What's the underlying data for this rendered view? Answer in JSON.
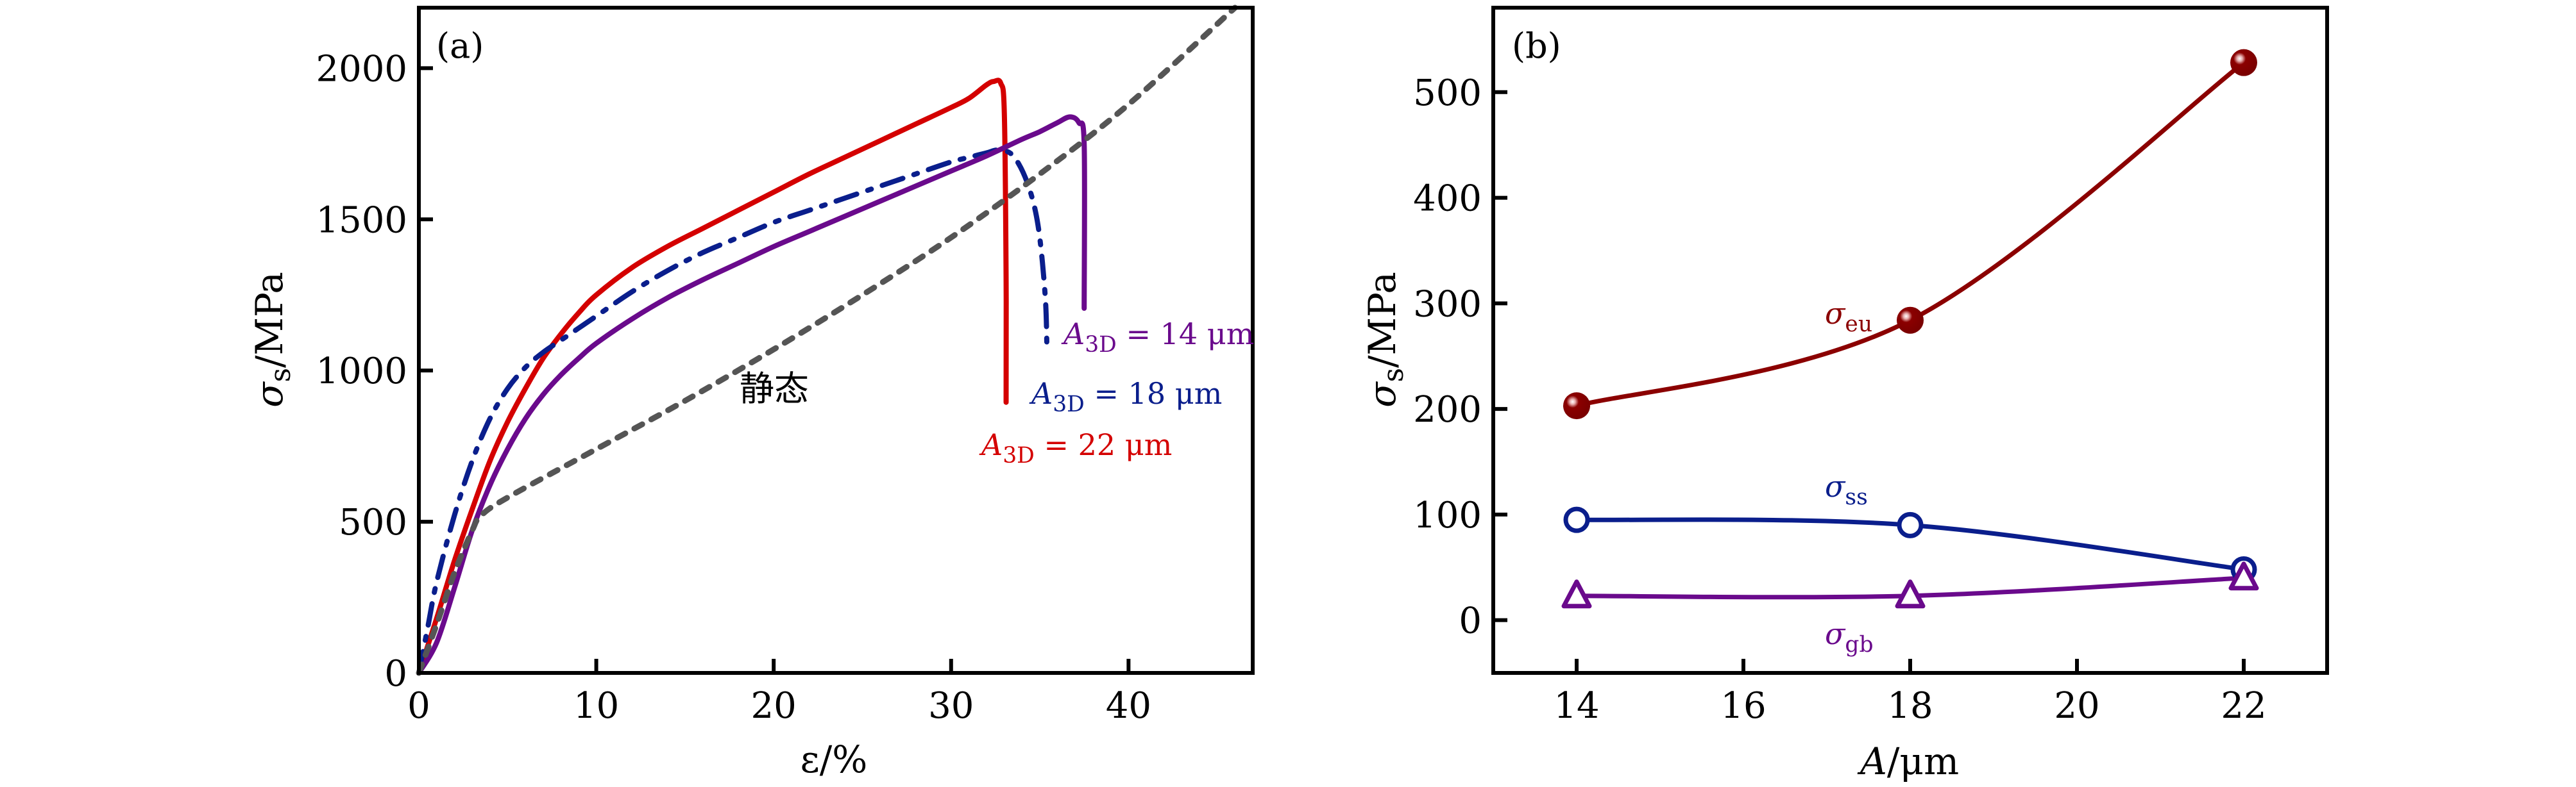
{
  "chart_data": [
    {
      "panel": "(a)",
      "type": "line",
      "xlabel": "ε/%",
      "ylabel": "σs/MPa",
      "xlim": [
        0,
        47
      ],
      "ylim": [
        0,
        2200
      ],
      "xticks": [
        0,
        10,
        20,
        30,
        40
      ],
      "yticks": [
        0,
        500,
        1000,
        1500,
        2000
      ],
      "grid": false,
      "annotation": "静态",
      "series": [
        {
          "name": "A3D = 22 μm",
          "label_main": "A",
          "label_sub": "3D",
          "label_rest": " = 22 μm",
          "color": "#d40000",
          "style": "solid",
          "x": [
            0,
            1,
            2,
            3,
            4,
            5,
            6,
            7,
            8,
            9,
            10,
            12,
            14,
            16,
            18,
            20,
            22,
            24,
            26,
            28,
            30,
            31,
            32,
            32.4,
            32.8,
            33.0,
            33.1,
            33.1
          ],
          "y": [
            0,
            180,
            370,
            540,
            700,
            830,
            940,
            1040,
            1120,
            1190,
            1250,
            1340,
            1410,
            1470,
            1530,
            1590,
            1650,
            1705,
            1760,
            1815,
            1870,
            1900,
            1945,
            1956,
            1950,
            1850,
            1300,
            895
          ]
        },
        {
          "name": "A3D = 18 μm",
          "label_main": "A",
          "label_sub": "3D",
          "label_rest": " = 18 μm",
          "color": "#0a1e8c",
          "style": "dashdot",
          "x": [
            0,
            0.5,
            1,
            2,
            3,
            4,
            5,
            6,
            7,
            8,
            9,
            10,
            12,
            14,
            16,
            18,
            20,
            22,
            24,
            26,
            28,
            30,
            31,
            32,
            32.7,
            33.5,
            34.3,
            34.9,
            35.3,
            35.4
          ],
          "y": [
            0,
            150,
            300,
            520,
            700,
            840,
            940,
            1010,
            1060,
            1100,
            1140,
            1180,
            1260,
            1330,
            1390,
            1440,
            1490,
            1530,
            1570,
            1610,
            1650,
            1690,
            1705,
            1720,
            1729,
            1710,
            1620,
            1480,
            1250,
            1073
          ]
        },
        {
          "name": "A3D = 14 μm",
          "label_main": "A",
          "label_sub": "3D",
          "label_rest": " = 14 μm",
          "color": "#6a0a8c",
          "style": "solid",
          "x": [
            0,
            1,
            2,
            3,
            4,
            5,
            6,
            7,
            8,
            9,
            10,
            12,
            14,
            16,
            18,
            20,
            22,
            24,
            26,
            28,
            30,
            32,
            34,
            35,
            36,
            36.7,
            37.2,
            37.5,
            37.5
          ],
          "y": [
            0,
            100,
            280,
            470,
            620,
            740,
            840,
            920,
            985,
            1040,
            1090,
            1170,
            1240,
            1300,
            1355,
            1410,
            1460,
            1510,
            1560,
            1610,
            1660,
            1710,
            1765,
            1790,
            1820,
            1839,
            1820,
            1750,
            1206
          ]
        },
        {
          "name": "静态",
          "color": "#555555",
          "style": "dotted",
          "x": [
            0,
            1,
            2,
            3,
            3.5,
            5,
            10,
            15,
            20,
            25,
            30,
            35,
            40,
            46
          ],
          "y": [
            0,
            160,
            330,
            470,
            520,
            580,
            740,
            900,
            1070,
            1250,
            1440,
            1650,
            1880,
            2200
          ]
        }
      ]
    },
    {
      "panel": "(b)",
      "type": "line",
      "xlabel": "A/μm",
      "ylabel": "σs/MPa",
      "xlim": [
        13,
        23
      ],
      "ylim": [
        -50,
        580
      ],
      "xticks": [
        14,
        16,
        18,
        20,
        22
      ],
      "yticks": [
        0,
        100,
        200,
        300,
        400,
        500
      ],
      "grid": false,
      "categories": [
        14,
        18,
        22
      ],
      "series": [
        {
          "name": "σeu",
          "label_main": "σ",
          "label_sub": "eu",
          "color": "#8b0000",
          "marker": "filled-sphere",
          "values": [
            203,
            284,
            528
          ]
        },
        {
          "name": "σss",
          "label_main": "σ",
          "label_sub": "ss",
          "color": "#0a1e8c",
          "marker": "open-circle",
          "values": [
            95,
            90,
            48
          ]
        },
        {
          "name": "σgb",
          "label_main": "σ",
          "label_sub": "gb",
          "color": "#6a0a8c",
          "marker": "open-triangle",
          "values": [
            23,
            23,
            40
          ]
        }
      ]
    }
  ]
}
